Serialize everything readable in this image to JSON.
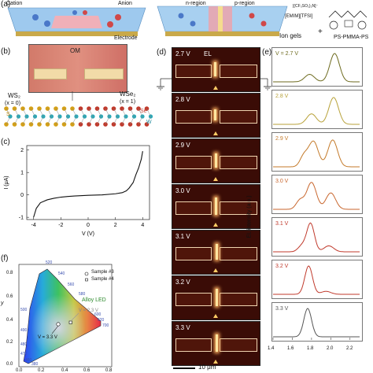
{
  "panel_a": {
    "label": "(a)",
    "cation": "Cation",
    "anion": "Anion",
    "n_region": "n-region",
    "p_region": "p-region",
    "electrode": "Electrode",
    "ion_gels": "Ion gels",
    "plus": "+",
    "emim_formula": "[(CF₃SO₂)₂N]⁻",
    "emim_name": "[EMIM][TFSI]",
    "polymer": "PS-PMMA-PS"
  },
  "panel_b": {
    "label": "(b)",
    "om": "OM",
    "ws2": "WS₂",
    "ws2_x": "(x = 0)",
    "wse2": "WSe₂",
    "wse2_x": "(x = 1)",
    "se": "Se",
    "s": "S",
    "w": "W",
    "colors": {
      "se": "#c0392b",
      "s": "#d4a017",
      "w": "#2aa9b8"
    }
  },
  "panel_c": {
    "label": "(c)",
    "chart_data": {
      "type": "line",
      "xlabel": "V (V)",
      "ylabel": "I (μA)",
      "xlim": [
        -4.5,
        4.5
      ],
      "ylim": [
        -1.1,
        2.2
      ],
      "xticks": [
        -4,
        -2,
        0,
        2,
        4
      ],
      "yticks": [
        -1,
        0,
        1,
        2
      ],
      "x": [
        -4.0,
        -3.8,
        -3.5,
        -3.0,
        -2.5,
        -2.0,
        -1.5,
        -1.0,
        0.0,
        1.0,
        2.0,
        2.5,
        2.8,
        3.0,
        3.3,
        3.5,
        3.7,
        3.9,
        4.0
      ],
      "y": [
        -1.0,
        -0.6,
        -0.35,
        -0.22,
        -0.15,
        -0.1,
        -0.07,
        -0.05,
        -0.02,
        0.0,
        0.05,
        0.1,
        0.18,
        0.3,
        0.55,
        0.9,
        1.2,
        1.6,
        1.95
      ]
    }
  },
  "panel_d": {
    "label": "(d)",
    "el": "EL",
    "scale_bar": "10 μm",
    "voltages": [
      "2.7 V",
      "2.8 V",
      "2.9 V",
      "3.0 V",
      "3.1 V",
      "3.2 V",
      "3.3 V"
    ]
  },
  "panel_e": {
    "label": "(e)",
    "ylabel": "EL intensity (a.u.)",
    "xticks": [
      "1.4",
      "1.6",
      "1.8",
      "2.0",
      "2.2"
    ],
    "chart_data": {
      "type": "line",
      "xlim": [
        1.4,
        2.3
      ],
      "series": [
        {
          "name": "V = 2.7 V",
          "color": "#6d6a1e",
          "peaks": [
            [
              1.78,
              0.25,
              0.05
            ],
            [
              2.04,
              0.95,
              0.05
            ]
          ]
        },
        {
          "name": "2.8 V",
          "color": "#b8a23a",
          "peaks": [
            [
              1.8,
              0.35,
              0.05
            ],
            [
              2.03,
              0.9,
              0.05
            ]
          ]
        },
        {
          "name": "2.9 V",
          "color": "#c47a2a",
          "peaks": [
            [
              1.72,
              0.35,
              0.04
            ],
            [
              1.82,
              0.85,
              0.05
            ],
            [
              2.02,
              0.9,
              0.05
            ]
          ]
        },
        {
          "name": "3.0 V",
          "color": "#c8662d",
          "peaks": [
            [
              1.68,
              0.3,
              0.04
            ],
            [
              1.8,
              0.9,
              0.05
            ],
            [
              2.0,
              0.55,
              0.05
            ]
          ]
        },
        {
          "name": "3.1 V",
          "color": "#c0392b",
          "peaks": [
            [
              1.7,
              0.2,
              0.04
            ],
            [
              1.79,
              0.95,
              0.04
            ],
            [
              1.98,
              0.2,
              0.05
            ]
          ]
        },
        {
          "name": "3.2 V",
          "color": "#c0392b",
          "peaks": [
            [
              1.77,
              0.95,
              0.04
            ],
            [
              1.95,
              0.1,
              0.05
            ]
          ]
        },
        {
          "name": "3.3 V",
          "color": "#555555",
          "peaks": [
            [
              1.76,
              0.95,
              0.04
            ]
          ]
        }
      ]
    }
  },
  "panel_f": {
    "label": "(f)",
    "legend": [
      "Sample #3",
      "Sample #4"
    ],
    "alloy_led": "Alloy LED",
    "v_low": "V = 2.3 V",
    "v_high": "V = 3.3 V",
    "wavelengths": [
      "520",
      "540",
      "560",
      "580",
      "600",
      "620",
      "700",
      "500",
      "490",
      "480",
      "470",
      "460",
      "380"
    ],
    "yticks": [
      "0.8",
      "0.6",
      "0.4",
      "0.2",
      "0.0"
    ],
    "xticks": [
      "0.0",
      "0.2",
      "0.4",
      "0.6",
      "0.8"
    ],
    "ylabel": "y"
  }
}
